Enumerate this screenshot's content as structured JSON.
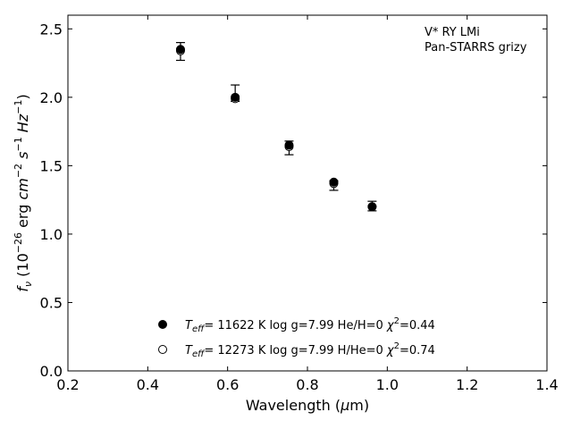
{
  "chart_data": {
    "type": "scatter",
    "annotation_lines": [
      "V* RY LMi",
      "Pan-STARRS grizy"
    ],
    "xlabel": "Wavelength (μm)",
    "ylabel": "f_ν (10^-26 erg cm^-2 s^-1 Hz^-1)",
    "xlim": [
      0.2,
      1.4
    ],
    "ylim": [
      0.0,
      2.6
    ],
    "xticks": [
      "0.2",
      "0.4",
      "0.6",
      "0.8",
      "1.0",
      "1.2",
      "1.4"
    ],
    "yticks": [
      "0.0",
      "0.5",
      "1.0",
      "1.5",
      "2.0",
      "2.5"
    ],
    "grid": false,
    "legend_position": "bottom-center",
    "observed": {
      "x": [
        0.482,
        0.619,
        0.754,
        0.866,
        0.962
      ],
      "y": [
        2.33,
        2.02,
        1.63,
        1.36,
        1.2
      ],
      "err_low": [
        0.06,
        0.05,
        0.05,
        0.04,
        0.03
      ],
      "err_high": [
        0.07,
        0.07,
        0.05,
        0.03,
        0.04
      ]
    },
    "series": [
      {
        "name": "T_eff= 11622 K  log g=7.99  He/H=0  χ²=0.44",
        "marker": "filled-circle",
        "color": "#000000",
        "x": [
          0.482,
          0.619,
          0.754,
          0.866,
          0.962
        ],
        "y": [
          2.35,
          2.0,
          1.65,
          1.38,
          1.2
        ]
      },
      {
        "name": "T_eff= 12273 K  log g=7.99  H/He=0  χ²=0.74",
        "marker": "open-circle",
        "color": "#000000",
        "x": [
          0.482,
          0.619,
          0.754,
          0.866,
          0.962
        ],
        "y": [
          2.34,
          1.99,
          1.64,
          1.37,
          1.2
        ]
      }
    ]
  }
}
